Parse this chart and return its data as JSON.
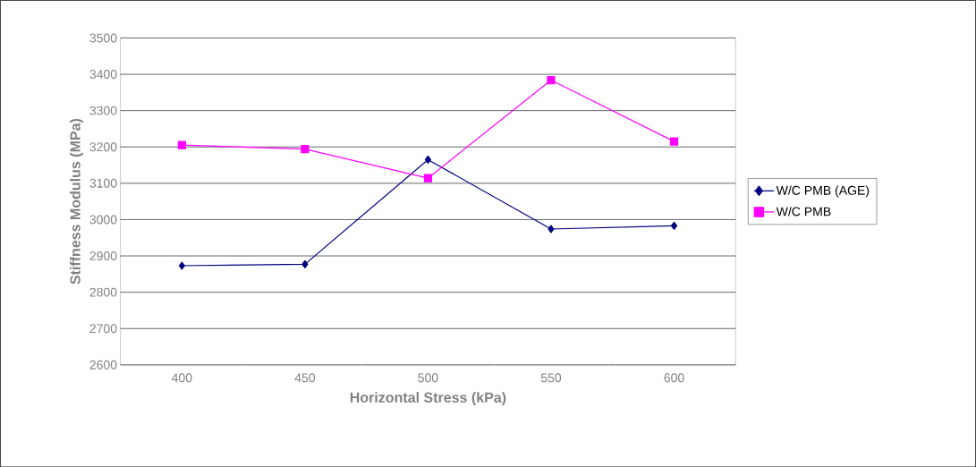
{
  "chart_data": {
    "type": "line",
    "xlabel": "Horizontal Stress (kPa)",
    "ylabel": "Stiffness Modulus (MPa)",
    "categories": [
      "400",
      "450",
      "500",
      "550",
      "600"
    ],
    "series": [
      {
        "name": "W/C PMB (AGE)",
        "color": "#000080",
        "marker": "diamond",
        "values": [
          2873,
          2877,
          3165,
          2974,
          2983
        ]
      },
      {
        "name": "W/C PMB",
        "color": "#ff00ff",
        "marker": "square",
        "values": [
          3205,
          3194,
          3114,
          3384,
          3215
        ]
      }
    ],
    "ylim": [
      2600,
      3500
    ],
    "yticks": [
      2600,
      2700,
      2800,
      2900,
      3000,
      3100,
      3200,
      3300,
      3400,
      3500
    ],
    "grid": "y",
    "legend": "right"
  }
}
